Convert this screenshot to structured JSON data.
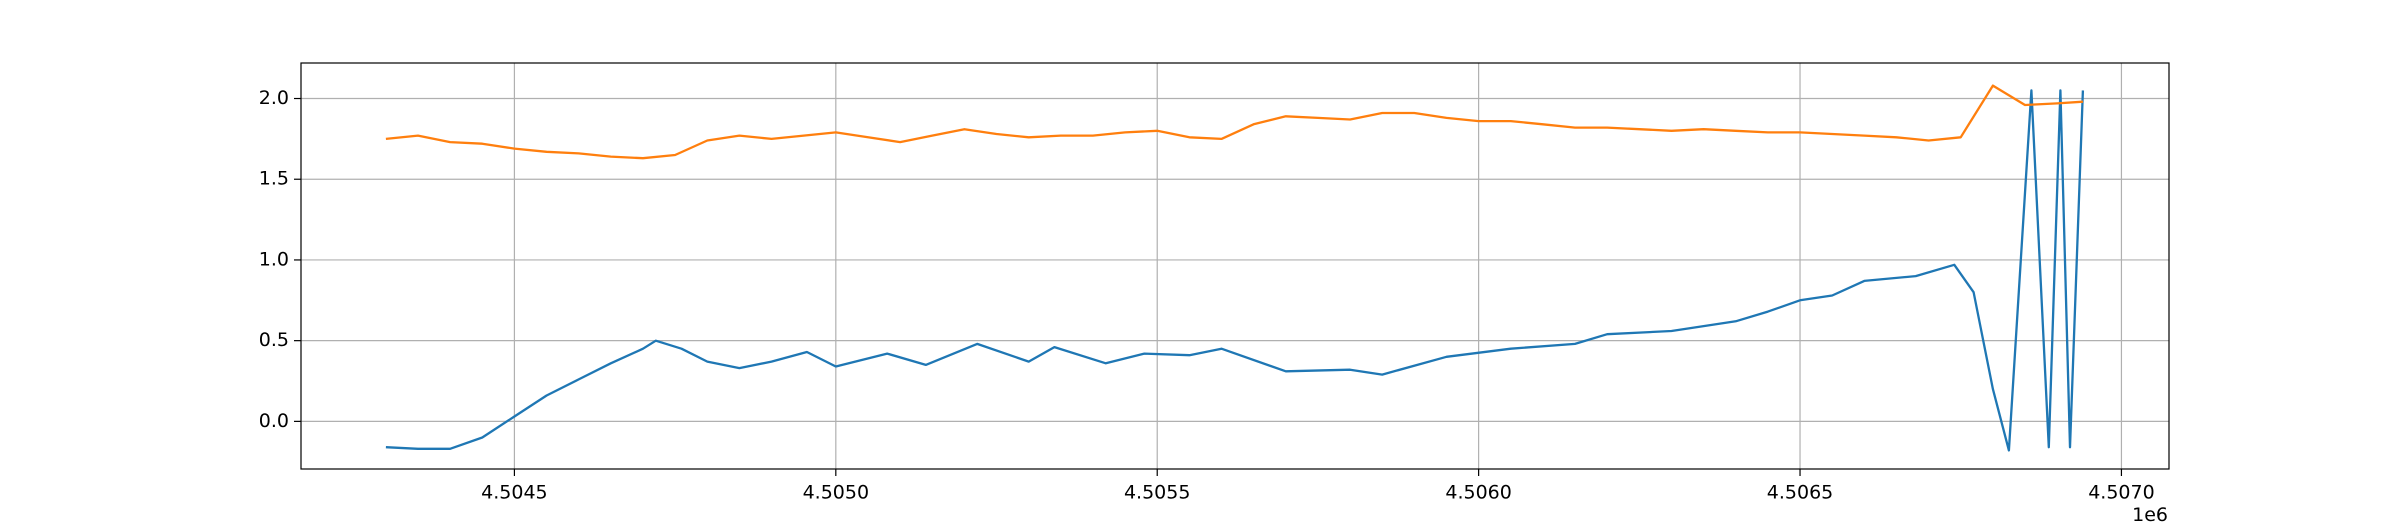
{
  "chart_data": {
    "type": "line",
    "x_offset_label": "1e6",
    "xlim": [
      4504168,
      4507074
    ],
    "ylim": [
      -0.295,
      2.22
    ],
    "xticks": [
      {
        "value": 4504500,
        "label": "4.5045"
      },
      {
        "value": 4505000,
        "label": "4.5050"
      },
      {
        "value": 4505500,
        "label": "4.5055"
      },
      {
        "value": 4506000,
        "label": "4.5060"
      },
      {
        "value": 4506500,
        "label": "4.5065"
      },
      {
        "value": 4507000,
        "label": "4.5070"
      }
    ],
    "yticks": [
      {
        "value": 0,
        "label": "0.0"
      },
      0.5,
      {
        "value": 1,
        "label": "1.0"
      },
      1.5,
      {
        "value": 2,
        "label": "2.0"
      }
    ],
    "grid": true,
    "series": [
      {
        "color": "#1f77b4",
        "x": [
          4504300,
          4504350,
          4504400,
          4504450,
          4504500,
          4504550,
          4504600,
          4504650,
          4504700,
          4504720,
          4504760,
          4504800,
          4504850,
          4504900,
          4504955,
          4505000,
          4505080,
          4505140,
          4505220,
          4505300,
          4505340,
          4505420,
          4505480,
          4505550,
          4505600,
          4505700,
          4505800,
          4505850,
          4505950,
          4506050,
          4506150,
          4506200,
          4506300,
          4506400,
          4506450,
          4506500,
          4506550,
          4506600,
          4506680,
          4506740,
          4506770,
          4506800,
          4506825,
          4506860,
          4506887,
          4506905,
          4506920,
          4506940
        ],
        "values": [
          -0.16,
          -0.17,
          -0.17,
          -0.1,
          0.03,
          0.16,
          0.26,
          0.36,
          0.45,
          0.5,
          0.45,
          0.37,
          0.33,
          0.37,
          0.43,
          0.34,
          0.42,
          0.35,
          0.48,
          0.37,
          0.46,
          0.36,
          0.42,
          0.41,
          0.45,
          0.31,
          0.32,
          0.29,
          0.4,
          0.45,
          0.48,
          0.54,
          0.56,
          0.62,
          0.68,
          0.75,
          0.78,
          0.87,
          0.9,
          0.97,
          0.8,
          0.2,
          -0.18,
          2.05,
          -0.16,
          2.05,
          -0.16,
          2.05
        ]
      },
      {
        "color": "#ff7f0e",
        "x": [
          4504300,
          4504350,
          4504400,
          4504450,
          4504500,
          4504550,
          4504600,
          4504650,
          4504700,
          4504750,
          4504800,
          4504850,
          4504900,
          4504950,
          4505000,
          4505050,
          4505100,
          4505150,
          4505200,
          4505250,
          4505300,
          4505350,
          4505400,
          4505450,
          4505500,
          4505550,
          4505600,
          4505650,
          4505700,
          4505750,
          4505800,
          4505850,
          4505900,
          4505950,
          4506000,
          4506050,
          4506100,
          4506150,
          4506200,
          4506250,
          4506300,
          4506350,
          4506400,
          4506450,
          4506500,
          4506550,
          4506600,
          4506650,
          4506700,
          4506750,
          4506800,
          4506850,
          4506900,
          4506940
        ],
        "values": [
          1.75,
          1.77,
          1.73,
          1.72,
          1.69,
          1.67,
          1.66,
          1.64,
          1.63,
          1.65,
          1.74,
          1.77,
          1.75,
          1.77,
          1.79,
          1.76,
          1.73,
          1.77,
          1.81,
          1.78,
          1.76,
          1.77,
          1.77,
          1.79,
          1.8,
          1.76,
          1.75,
          1.84,
          1.89,
          1.88,
          1.87,
          1.91,
          1.91,
          1.88,
          1.86,
          1.86,
          1.84,
          1.82,
          1.82,
          1.81,
          1.8,
          1.81,
          1.8,
          1.79,
          1.79,
          1.78,
          1.77,
          1.76,
          1.74,
          1.76,
          2.08,
          1.96,
          1.97,
          1.98
        ]
      }
    ]
  }
}
